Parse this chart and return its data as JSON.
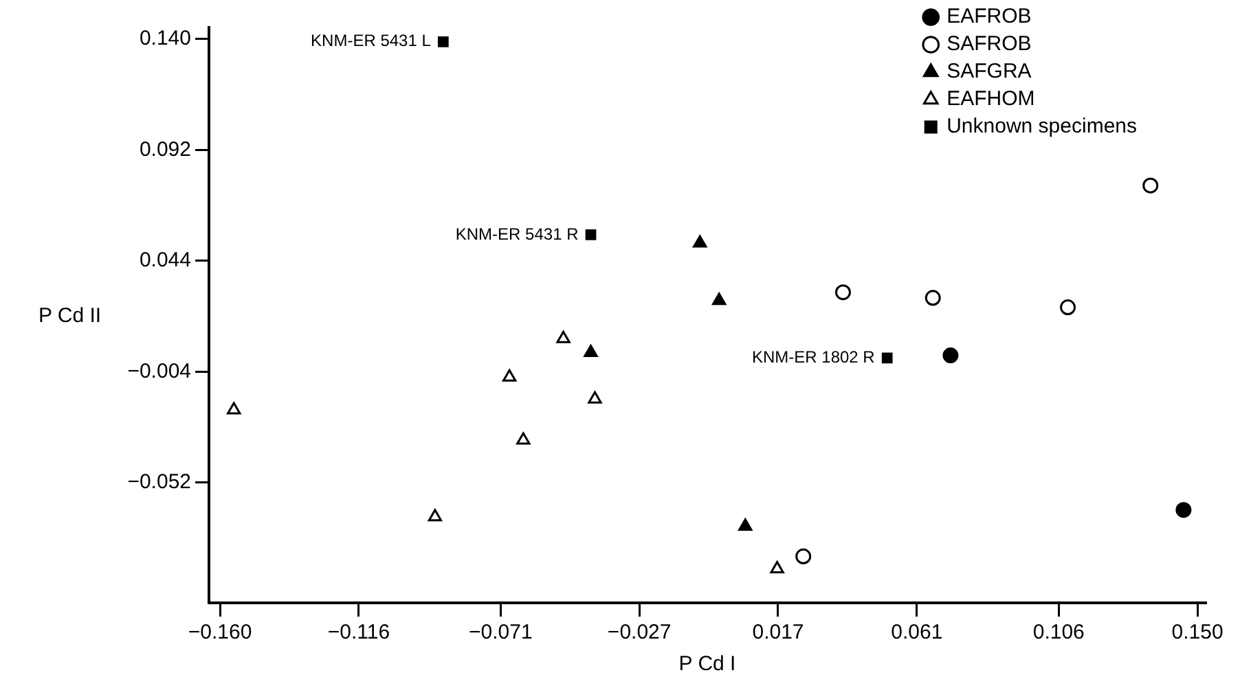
{
  "chart_data": {
    "type": "scatter",
    "xlabel": "P Cd I",
    "ylabel": "P Cd II",
    "xlim": [
      -0.1635,
      0.1526
    ],
    "ylim": [
      -0.104,
      0.145
    ],
    "xticks": [
      {
        "value": -0.16,
        "label": "−0.160"
      },
      {
        "value": -0.116,
        "label": "−0.116"
      },
      {
        "value": -0.071,
        "label": "−0.071"
      },
      {
        "value": -0.027,
        "label": "−0.027"
      },
      {
        "value": 0.017,
        "label": "0.017"
      },
      {
        "value": 0.061,
        "label": "0.061"
      },
      {
        "value": 0.106,
        "label": "0.106"
      },
      {
        "value": 0.15,
        "label": "0.150"
      }
    ],
    "yticks": [
      {
        "value": 0.14,
        "label": "0.140"
      },
      {
        "value": 0.092,
        "label": "0.092"
      },
      {
        "value": 0.044,
        "label": "0.044"
      },
      {
        "value": -0.004,
        "label": "−0.004"
      },
      {
        "value": -0.052,
        "label": "−0.052"
      }
    ],
    "grid": false,
    "legend": "top right",
    "series": [
      {
        "name": "EAFROB",
        "color": "#000000",
        "marker": "circle",
        "x": [
          0.0717,
          0.1456
        ],
        "values": [
          0.0031,
          -0.0638
        ]
      },
      {
        "name": "SAFROB",
        "color": "#ffffff",
        "marker": "circle",
        "x": [
          0.1351,
          0.0376,
          0.0661,
          0.1089,
          0.025
        ],
        "values": [
          0.0766,
          0.0304,
          0.028,
          0.0239,
          -0.0839
        ]
      },
      {
        "name": "SAFGRA",
        "color": "#000000",
        "marker": "triangle",
        "x": [
          -0.0078,
          -0.0017,
          -0.0424,
          0.0066
        ],
        "values": [
          0.0517,
          0.0268,
          0.0043,
          -0.0709
        ]
      },
      {
        "name": "EAFHOM",
        "color": "#ffffff",
        "marker": "triangle",
        "x": [
          -0.0511,
          -0.0682,
          -0.0411,
          -0.1556,
          -0.0638,
          -0.0918,
          0.0167
        ],
        "values": [
          0.0103,
          -0.0063,
          -0.0158,
          -0.0205,
          -0.0336,
          -0.0668,
          -0.0893
        ]
      },
      {
        "name": "Unknown specimens",
        "color": "#000000",
        "marker": "square",
        "x": [
          -0.0892,
          -0.0424,
          0.0516
        ],
        "values": [
          0.1388,
          0.0553,
          0.002
        ]
      }
    ],
    "annotations": [
      {
        "text": "KNM-ER 5431 L",
        "x": -0.0892,
        "y": 0.1388
      },
      {
        "text": "KNM-ER 5431 R",
        "x": -0.0424,
        "y": 0.0553
      },
      {
        "text": "KNM-ER 1802 R",
        "x": 0.0516,
        "y": 0.002
      }
    ]
  }
}
